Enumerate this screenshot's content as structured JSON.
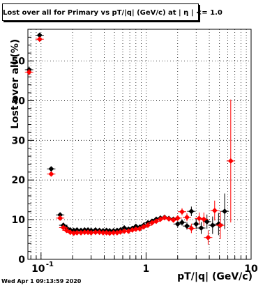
{
  "window": {
    "timestamp": "Wed Apr  1 09:13:59 2020"
  },
  "chart_data": {
    "type": "scatter",
    "title": "Lost over all for Primary vs pT/|q| (GeV/c) at |  η | <= 1.0",
    "xlabel": "pT/|q| (GeV/c)",
    "ylabel": "Lost over all (%)",
    "xscale": "log",
    "xlim": [
      0.075,
      10
    ],
    "ylim": [
      0,
      58
    ],
    "grid": true,
    "x_tick_labels": [
      {
        "value": 0.1,
        "label": "10",
        "exp": "-1"
      },
      {
        "value": 1,
        "label": "1",
        "exp": ""
      },
      {
        "value": 10,
        "label": "10",
        "exp": ""
      }
    ],
    "y_tick_labels": [
      {
        "value": 0,
        "label": "0"
      },
      {
        "value": 10,
        "label": "10"
      },
      {
        "value": 20,
        "label": "20"
      },
      {
        "value": 30,
        "label": "30"
      },
      {
        "value": 40,
        "label": "40"
      },
      {
        "value": 50,
        "label": "50"
      }
    ],
    "series": [
      {
        "color": "#000000",
        "points": [
          {
            "x": 0.077,
            "y": 47.8,
            "e": 0.8
          },
          {
            "x": 0.097,
            "y": 56.5,
            "e": 0.6
          },
          {
            "x": 0.125,
            "y": 22.8,
            "e": 0.5
          },
          {
            "x": 0.152,
            "y": 11.2,
            "e": 0.4
          },
          {
            "x": 0.163,
            "y": 8.6,
            "e": 0.3
          },
          {
            "x": 0.175,
            "y": 7.9,
            "e": 0.3
          },
          {
            "x": 0.19,
            "y": 7.4,
            "e": 0.3
          },
          {
            "x": 0.205,
            "y": 7.3,
            "e": 0.3
          },
          {
            "x": 0.22,
            "y": 7.4,
            "e": 0.3
          },
          {
            "x": 0.24,
            "y": 7.3,
            "e": 0.3
          },
          {
            "x": 0.26,
            "y": 7.4,
            "e": 0.3
          },
          {
            "x": 0.28,
            "y": 7.4,
            "e": 0.3
          },
          {
            "x": 0.3,
            "y": 7.3,
            "e": 0.3
          },
          {
            "x": 0.33,
            "y": 7.4,
            "e": 0.3
          },
          {
            "x": 0.36,
            "y": 7.3,
            "e": 0.3
          },
          {
            "x": 0.39,
            "y": 7.2,
            "e": 0.3
          },
          {
            "x": 0.42,
            "y": 7.3,
            "e": 0.3
          },
          {
            "x": 0.45,
            "y": 7.2,
            "e": 0.3
          },
          {
            "x": 0.49,
            "y": 7.2,
            "e": 0.3
          },
          {
            "x": 0.53,
            "y": 7.3,
            "e": 0.3
          },
          {
            "x": 0.57,
            "y": 7.4,
            "e": 0.3
          },
          {
            "x": 0.62,
            "y": 7.9,
            "e": 0.3
          },
          {
            "x": 0.68,
            "y": 7.6,
            "e": 0.3
          },
          {
            "x": 0.74,
            "y": 7.8,
            "e": 0.3
          },
          {
            "x": 0.8,
            "y": 8.3,
            "e": 0.4
          },
          {
            "x": 0.87,
            "y": 8.1,
            "e": 0.4
          },
          {
            "x": 0.95,
            "y": 8.6,
            "e": 0.4
          },
          {
            "x": 1.04,
            "y": 9.2,
            "e": 0.4
          },
          {
            "x": 1.14,
            "y": 9.6,
            "e": 0.4
          },
          {
            "x": 1.25,
            "y": 10.1,
            "e": 0.4
          },
          {
            "x": 1.37,
            "y": 10.4,
            "e": 0.5
          },
          {
            "x": 1.5,
            "y": 10.6,
            "e": 0.5
          },
          {
            "x": 1.65,
            "y": 10.3,
            "e": 0.5
          },
          {
            "x": 1.82,
            "y": 10.1,
            "e": 0.6
          },
          {
            "x": 2.0,
            "y": 8.9,
            "e": 0.7
          },
          {
            "x": 2.2,
            "y": 9.3,
            "e": 0.8
          },
          {
            "x": 2.45,
            "y": 8.4,
            "e": 0.9
          },
          {
            "x": 2.7,
            "y": 12.1,
            "e": 1.2
          },
          {
            "x": 3.0,
            "y": 8.9,
            "e": 1.3
          },
          {
            "x": 3.35,
            "y": 7.9,
            "e": 1.5
          },
          {
            "x": 3.8,
            "y": 9.5,
            "e": 1.8
          },
          {
            "x": 4.3,
            "y": 8.6,
            "e": 2.2
          },
          {
            "x": 4.9,
            "y": 8.9,
            "e": 2.8
          },
          {
            "x": 5.6,
            "y": 12.1,
            "e": 4.5
          }
        ]
      },
      {
        "color": "#ff0000",
        "points": [
          {
            "x": 0.077,
            "y": 47.2,
            "e": 0.8
          },
          {
            "x": 0.097,
            "y": 55.5,
            "e": 0.6
          },
          {
            "x": 0.125,
            "y": 21.5,
            "e": 0.5
          },
          {
            "x": 0.152,
            "y": 10.4,
            "e": 0.4
          },
          {
            "x": 0.163,
            "y": 8.0,
            "e": 0.3
          },
          {
            "x": 0.175,
            "y": 7.3,
            "e": 0.3
          },
          {
            "x": 0.19,
            "y": 6.8,
            "e": 0.3
          },
          {
            "x": 0.205,
            "y": 6.6,
            "e": 0.3
          },
          {
            "x": 0.22,
            "y": 6.7,
            "e": 0.3
          },
          {
            "x": 0.24,
            "y": 6.7,
            "e": 0.3
          },
          {
            "x": 0.26,
            "y": 6.8,
            "e": 0.3
          },
          {
            "x": 0.28,
            "y": 6.8,
            "e": 0.3
          },
          {
            "x": 0.3,
            "y": 6.7,
            "e": 0.3
          },
          {
            "x": 0.33,
            "y": 6.8,
            "e": 0.3
          },
          {
            "x": 0.36,
            "y": 6.8,
            "e": 0.3
          },
          {
            "x": 0.39,
            "y": 6.7,
            "e": 0.3
          },
          {
            "x": 0.42,
            "y": 6.7,
            "e": 0.3
          },
          {
            "x": 0.45,
            "y": 6.6,
            "e": 0.3
          },
          {
            "x": 0.49,
            "y": 6.7,
            "e": 0.3
          },
          {
            "x": 0.53,
            "y": 6.7,
            "e": 0.3
          },
          {
            "x": 0.57,
            "y": 6.9,
            "e": 0.3
          },
          {
            "x": 0.62,
            "y": 7.1,
            "e": 0.3
          },
          {
            "x": 0.68,
            "y": 7.1,
            "e": 0.3
          },
          {
            "x": 0.74,
            "y": 7.4,
            "e": 0.3
          },
          {
            "x": 0.8,
            "y": 7.6,
            "e": 0.4
          },
          {
            "x": 0.87,
            "y": 7.7,
            "e": 0.4
          },
          {
            "x": 0.95,
            "y": 8.2,
            "e": 0.4
          },
          {
            "x": 1.04,
            "y": 8.6,
            "e": 0.4
          },
          {
            "x": 1.14,
            "y": 9.2,
            "e": 0.4
          },
          {
            "x": 1.25,
            "y": 9.6,
            "e": 0.4
          },
          {
            "x": 1.37,
            "y": 10.1,
            "e": 0.5
          },
          {
            "x": 1.5,
            "y": 10.5,
            "e": 0.5
          },
          {
            "x": 1.65,
            "y": 10.2,
            "e": 0.5
          },
          {
            "x": 1.82,
            "y": 9.9,
            "e": 0.6
          },
          {
            "x": 2.0,
            "y": 10.4,
            "e": 0.7
          },
          {
            "x": 2.2,
            "y": 12.0,
            "e": 0.9
          },
          {
            "x": 2.45,
            "y": 10.6,
            "e": 1.0
          },
          {
            "x": 2.7,
            "y": 7.8,
            "e": 1.2
          },
          {
            "x": 3.2,
            "y": 10.3,
            "e": 1.5
          },
          {
            "x": 3.55,
            "y": 10.1,
            "e": 1.7
          },
          {
            "x": 3.9,
            "y": 5.5,
            "e": 1.8
          },
          {
            "x": 4.5,
            "y": 12.3,
            "e": 2.5
          },
          {
            "x": 5.1,
            "y": 8.6,
            "e": 3.5
          },
          {
            "x": 6.4,
            "y": 24.8,
            "e": 15.5
          }
        ]
      }
    ]
  }
}
